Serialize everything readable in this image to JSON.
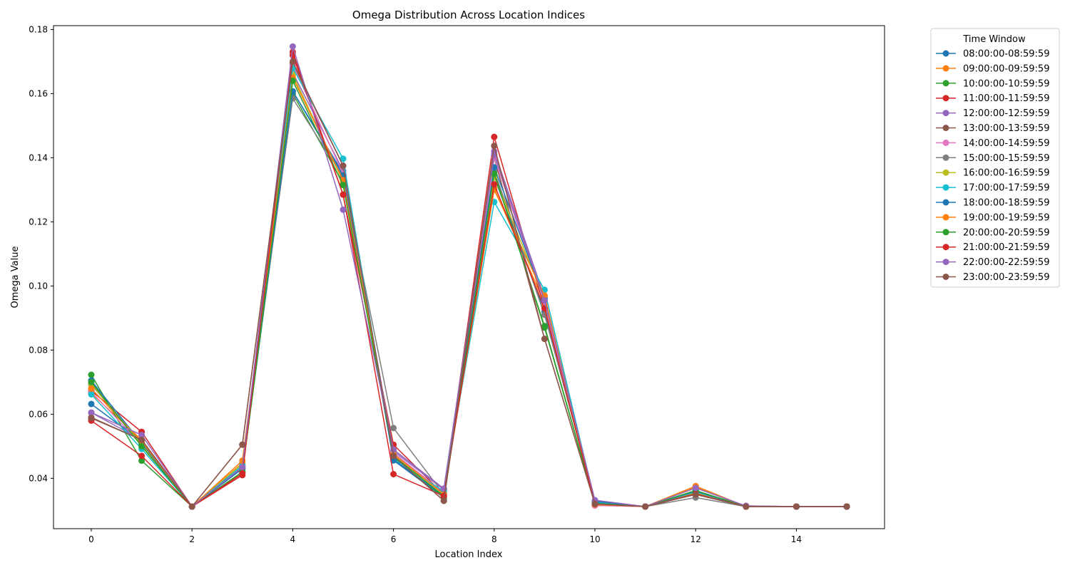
{
  "chart_data": {
    "type": "line",
    "title": "Omega Distribution Across Location Indices",
    "xlabel": "Location Index",
    "ylabel": "Omega Value",
    "xlim": [
      -0.75,
      15.75
    ],
    "ylim": [
      0.0243,
      0.1812
    ],
    "xticks": [
      0,
      2,
      4,
      6,
      8,
      10,
      12,
      14
    ],
    "xtick_labels": [
      "0",
      "2",
      "4",
      "6",
      "8",
      "10",
      "12",
      "14"
    ],
    "yticks": [
      0.04,
      0.06,
      0.08,
      0.1,
      0.12,
      0.14,
      0.16,
      0.18
    ],
    "ytick_labels": [
      "0.04",
      "0.06",
      "0.08",
      "0.10",
      "0.12",
      "0.14",
      "0.16",
      "0.18"
    ],
    "grid": false,
    "legend": {
      "title": "Time Window",
      "placement": "outside-right"
    },
    "x": [
      0,
      1,
      2,
      3,
      4,
      5,
      6,
      7,
      8,
      9,
      10,
      11,
      12,
      13,
      14,
      15
    ],
    "series": [
      {
        "name": "08:00:00-08:59:59",
        "color": "#1f77b4",
        "values": [
          0.0632,
          0.0515,
          0.0312,
          0.0432,
          0.1607,
          0.1352,
          0.0456,
          0.034,
          0.134,
          0.092,
          0.0325,
          0.0312,
          0.0355,
          0.0312,
          0.0312,
          0.0312
        ]
      },
      {
        "name": "09:00:00-09:59:59",
        "color": "#ff7f0e",
        "values": [
          0.0665,
          0.052,
          0.0312,
          0.0448,
          0.165,
          0.133,
          0.0478,
          0.0355,
          0.1305,
          0.0945,
          0.0316,
          0.0312,
          0.0376,
          0.0312,
          0.0312,
          0.0312
        ]
      },
      {
        "name": "10:00:00-10:59:59",
        "color": "#2ca02c",
        "values": [
          0.0723,
          0.0455,
          0.0312,
          0.042,
          0.16,
          0.132,
          0.0465,
          0.034,
          0.1355,
          0.087,
          0.0322,
          0.0312,
          0.0362,
          0.0312,
          0.0312,
          0.0312
        ]
      },
      {
        "name": "11:00:00-11:59:59",
        "color": "#d62728",
        "values": [
          0.0673,
          0.0545,
          0.0312,
          0.041,
          0.173,
          0.1285,
          0.0505,
          0.035,
          0.1465,
          0.093,
          0.0322,
          0.0312,
          0.035,
          0.0312,
          0.0312,
          0.0312
        ]
      },
      {
        "name": "12:00:00-12:59:59",
        "color": "#9467bd",
        "values": [
          0.0605,
          0.052,
          0.0312,
          0.0432,
          0.1665,
          0.136,
          0.0485,
          0.0365,
          0.142,
          0.0965,
          0.033,
          0.0312,
          0.037,
          0.0314,
          0.0312,
          0.0312
        ]
      },
      {
        "name": "13:00:00-13:59:59",
        "color": "#8c564b",
        "values": [
          0.059,
          0.052,
          0.0312,
          0.0505,
          0.1695,
          0.1375,
          0.047,
          0.033,
          0.14,
          0.0835,
          0.032,
          0.0312,
          0.035,
          0.0312,
          0.0312,
          0.0312
        ]
      },
      {
        "name": "14:00:00-14:59:59",
        "color": "#e377c2",
        "values": [
          0.067,
          0.0505,
          0.0312,
          0.043,
          0.169,
          0.135,
          0.048,
          0.0355,
          0.14,
          0.095,
          0.0315,
          0.0312,
          0.0358,
          0.0312,
          0.0312,
          0.0312
        ]
      },
      {
        "name": "15:00:00-15:59:59",
        "color": "#7f7f7f",
        "values": [
          0.0692,
          0.051,
          0.0312,
          0.044,
          0.1585,
          0.134,
          0.0557,
          0.035,
          0.136,
          0.091,
          0.033,
          0.0312,
          0.034,
          0.0312,
          0.0312,
          0.0312
        ]
      },
      {
        "name": "16:00:00-16:59:59",
        "color": "#bcbd22",
        "values": [
          0.0695,
          0.0505,
          0.0312,
          0.0445,
          0.166,
          0.1325,
          0.0475,
          0.035,
          0.134,
          0.096,
          0.0322,
          0.0312,
          0.0355,
          0.0312,
          0.0312,
          0.0312
        ]
      },
      {
        "name": "17:00:00-17:59:59",
        "color": "#17becf",
        "values": [
          0.0662,
          0.0492,
          0.0312,
          0.044,
          0.168,
          0.1397,
          0.046,
          0.036,
          0.1262,
          0.0988,
          0.0325,
          0.0312,
          0.0358,
          0.0312,
          0.0312,
          0.0312
        ]
      },
      {
        "name": "18:00:00-18:59:59",
        "color": "#1f77b4",
        "values": [
          0.0705,
          0.051,
          0.0312,
          0.043,
          0.1607,
          0.1345,
          0.0458,
          0.0345,
          0.137,
          0.096,
          0.0328,
          0.0312,
          0.036,
          0.0312,
          0.0312,
          0.0312
        ]
      },
      {
        "name": "19:00:00-19:59:59",
        "color": "#ff7f0e",
        "values": [
          0.068,
          0.0515,
          0.0312,
          0.0455,
          0.165,
          0.133,
          0.0475,
          0.035,
          0.13,
          0.097,
          0.0318,
          0.0312,
          0.0372,
          0.0312,
          0.0312,
          0.0312
        ]
      },
      {
        "name": "20:00:00-20:59:59",
        "color": "#2ca02c",
        "values": [
          0.07,
          0.05,
          0.0312,
          0.042,
          0.164,
          0.1315,
          0.047,
          0.0345,
          0.135,
          0.0875,
          0.0322,
          0.0312,
          0.0362,
          0.0312,
          0.0312,
          0.0312
        ]
      },
      {
        "name": "21:00:00-21:59:59",
        "color": "#d62728",
        "values": [
          0.058,
          0.047,
          0.0312,
          0.0415,
          0.172,
          0.1285,
          0.0413,
          0.0345,
          0.1317,
          0.093,
          0.032,
          0.0312,
          0.0352,
          0.0312,
          0.0312,
          0.0312
        ]
      },
      {
        "name": "22:00:00-22:59:59",
        "color": "#9467bd",
        "values": [
          0.0605,
          0.0535,
          0.0312,
          0.0435,
          0.1747,
          0.1238,
          0.049,
          0.0368,
          0.141,
          0.0955,
          0.0332,
          0.0312,
          0.037,
          0.0314,
          0.0312,
          0.0312
        ]
      },
      {
        "name": "23:00:00-23:59:59",
        "color": "#8c564b",
        "values": [
          0.0588,
          0.052,
          0.0312,
          0.0505,
          0.17,
          0.1375,
          0.047,
          0.033,
          0.1437,
          0.0835,
          0.032,
          0.0312,
          0.035,
          0.0312,
          0.0312,
          0.0312
        ]
      }
    ]
  }
}
